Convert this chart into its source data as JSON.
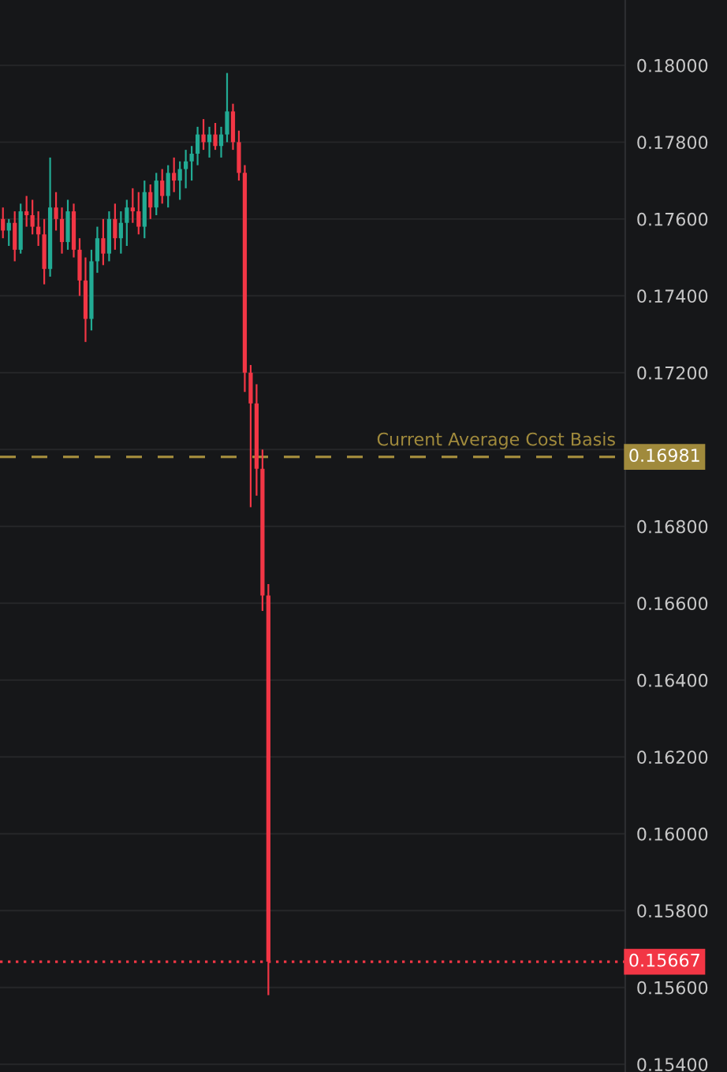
{
  "chart_data": {
    "type": "candlestick",
    "categories": [
      null,
      null,
      null,
      null,
      null,
      null,
      null,
      null,
      null,
      null,
      null,
      null,
      null,
      null,
      null,
      null,
      null,
      null,
      null,
      null,
      null,
      null,
      null,
      null,
      null,
      null,
      null,
      null,
      null,
      null,
      null,
      null,
      null,
      null,
      null,
      null,
      null,
      null,
      null,
      null,
      null,
      null,
      null,
      null,
      null,
      null,
      null,
      null,
      null,
      null,
      null,
      null,
      null,
      null,
      null,
      null,
      null,
      null,
      null,
      null,
      null,
      null,
      null,
      null,
      null,
      null,
      null,
      null,
      null,
      null,
      null,
      null,
      null,
      null,
      null,
      null,
      null,
      null,
      null,
      null,
      null,
      null,
      null,
      null,
      null,
      null,
      null,
      null,
      null,
      null,
      null,
      null,
      null,
      null,
      null,
      null,
      null,
      null,
      null,
      null,
      null,
      null,
      null,
      null,
      null,
      null
    ],
    "ohlc": [
      [
        0.176,
        0.1763,
        0.1755,
        0.1757
      ],
      [
        0.1757,
        0.176,
        0.1753,
        0.1759
      ],
      [
        0.1759,
        0.1762,
        0.1749,
        0.1752
      ],
      [
        0.1752,
        0.1764,
        0.1751,
        0.1762
      ],
      [
        0.1762,
        0.1766,
        0.1758,
        0.1761
      ],
      [
        0.1761,
        0.1765,
        0.1756,
        0.1758
      ],
      [
        0.1758,
        0.1762,
        0.1753,
        0.1756
      ],
      [
        0.1756,
        0.176,
        0.1743,
        0.1747
      ],
      [
        0.1747,
        0.1776,
        0.1745,
        0.1763
      ],
      [
        0.1763,
        0.1767,
        0.1757,
        0.176
      ],
      [
        0.176,
        0.1763,
        0.1751,
        0.1754
      ],
      [
        0.1754,
        0.1765,
        0.1752,
        0.1762
      ],
      [
        0.1762,
        0.1764,
        0.175,
        0.1752
      ],
      [
        0.1752,
        0.1755,
        0.174,
        0.1744
      ],
      [
        0.1744,
        0.175,
        0.1728,
        0.1734
      ],
      [
        0.1734,
        0.1752,
        0.1731,
        0.1749
      ],
      [
        0.1749,
        0.1758,
        0.1746,
        0.1755
      ],
      [
        0.1755,
        0.176,
        0.1748,
        0.1751
      ],
      [
        0.1751,
        0.1762,
        0.1749,
        0.176
      ],
      [
        0.176,
        0.1764,
        0.1752,
        0.1755
      ],
      [
        0.1755,
        0.1762,
        0.1751,
        0.1759
      ],
      [
        0.1759,
        0.1765,
        0.1753,
        0.1763
      ],
      [
        0.1763,
        0.1768,
        0.1759,
        0.1762
      ],
      [
        0.1762,
        0.1767,
        0.1756,
        0.1758
      ],
      [
        0.1758,
        0.177,
        0.1755,
        0.1767
      ],
      [
        0.1767,
        0.1769,
        0.176,
        0.1763
      ],
      [
        0.1763,
        0.1772,
        0.1761,
        0.177
      ],
      [
        0.177,
        0.1773,
        0.1764,
        0.1766
      ],
      [
        0.1766,
        0.1774,
        0.1763,
        0.1772
      ],
      [
        0.1772,
        0.1776,
        0.1767,
        0.177
      ],
      [
        0.177,
        0.1775,
        0.1765,
        0.1773
      ],
      [
        0.1773,
        0.1778,
        0.1768,
        0.1775
      ],
      [
        0.1775,
        0.1779,
        0.177,
        0.1777
      ],
      [
        0.1777,
        0.1784,
        0.1774,
        0.1782
      ],
      [
        0.1782,
        0.1786,
        0.1778,
        0.178
      ],
      [
        0.178,
        0.1784,
        0.1776,
        0.1782
      ],
      [
        0.1782,
        0.1785,
        0.1778,
        0.1779
      ],
      [
        0.1779,
        0.1784,
        0.1776,
        0.1782
      ],
      [
        0.1782,
        0.1798,
        0.178,
        0.1788
      ],
      [
        0.1788,
        0.179,
        0.1778,
        0.178
      ],
      [
        0.178,
        0.1783,
        0.177,
        0.1772
      ],
      [
        0.1772,
        0.1774,
        0.1715,
        0.172
      ],
      [
        0.172,
        0.1722,
        0.1685,
        0.1712
      ],
      [
        0.1712,
        0.1717,
        0.1688,
        0.1695
      ],
      [
        0.1695,
        0.17,
        0.1658,
        0.1662
      ],
      [
        0.1662,
        0.1665,
        0.1558,
        0.15667
      ],
      null,
      null,
      null,
      null,
      null,
      null,
      null,
      null,
      null,
      null,
      null,
      null,
      null,
      null,
      null,
      null,
      null,
      null,
      null,
      null,
      null,
      null,
      null,
      null,
      null,
      null,
      null,
      null,
      null,
      null,
      null,
      null,
      null,
      null,
      null,
      null,
      null,
      null,
      null,
      null,
      null,
      null,
      null,
      null,
      null,
      null,
      null,
      null,
      null,
      null,
      null,
      null,
      null,
      null,
      null,
      null,
      null,
      null,
      null,
      null
    ],
    "colors": [
      "#f23645",
      "#22ab94",
      "#f23645",
      "#22ab94",
      "#f23645",
      "#f23645",
      "#f23645",
      "#f23645",
      "#22ab94",
      "#f23645",
      "#f23645",
      "#22ab94",
      "#f23645",
      "#f23645",
      "#f23645",
      "#22ab94",
      "#22ab94",
      "#f23645",
      "#22ab94",
      "#f23645",
      "#22ab94",
      "#22ab94",
      "#f23645",
      "#f23645",
      "#22ab94",
      "#f23645",
      "#22ab94",
      "#f23645",
      "#22ab94",
      "#f23645",
      "#22ab94",
      "#22ab94",
      "#22ab94",
      "#22ab94",
      "#f23645",
      "#22ab94",
      "#f23645",
      "#22ab94",
      "#22ab94",
      "#f23645",
      "#f23645",
      "#f23645",
      "#f23645",
      "#f23645",
      "#f23645",
      "#f23645",
      null,
      null,
      null,
      null,
      null,
      null,
      null,
      null,
      null,
      null,
      null,
      null,
      null,
      null,
      null,
      null,
      null,
      null,
      null,
      null,
      null,
      null,
      null,
      null,
      null,
      null,
      null,
      null,
      null,
      null,
      null,
      null,
      null,
      null,
      null,
      null,
      null,
      null,
      null,
      null,
      null,
      null,
      null,
      null,
      null,
      null,
      null,
      null,
      null,
      null,
      null,
      null,
      null,
      null,
      null,
      null,
      null,
      null,
      null,
      null
    ],
    "annotations": [
      "0.16981",
      "0.15667"
    ],
    "ylim": [
      0.1538,
      0.1817
    ],
    "yticks": [
      {
        "value": 0.154,
        "label": "0.15400"
      },
      {
        "value": 0.156,
        "label": "0.15600"
      },
      {
        "value": 0.158,
        "label": "0.15800"
      },
      {
        "value": 0.16,
        "label": "0.16000"
      },
      {
        "value": 0.162,
        "label": "0.16200"
      },
      {
        "value": 0.164,
        "label": "0.16400"
      },
      {
        "value": 0.166,
        "label": "0.16600"
      },
      {
        "value": 0.168,
        "label": "0.16800"
      },
      {
        "value": 0.17,
        "label": null
      },
      {
        "value": 0.172,
        "label": "0.17200"
      },
      {
        "value": 0.174,
        "label": "0.17400"
      },
      {
        "value": 0.176,
        "label": "0.17600"
      },
      {
        "value": 0.178,
        "label": "0.17800"
      },
      {
        "value": 0.18,
        "label": "0.18000"
      }
    ],
    "ref_lines": [
      {
        "axis": "y",
        "value": 0.16981,
        "label": "Current Average Cost Basis",
        "color": "#a08a3c",
        "line_style": "dashed"
      },
      {
        "axis": "y",
        "value": 0.15667,
        "color": "#f23645",
        "line_style": "dotted"
      }
    ],
    "grid": "y",
    "tick_labels": "y"
  }
}
